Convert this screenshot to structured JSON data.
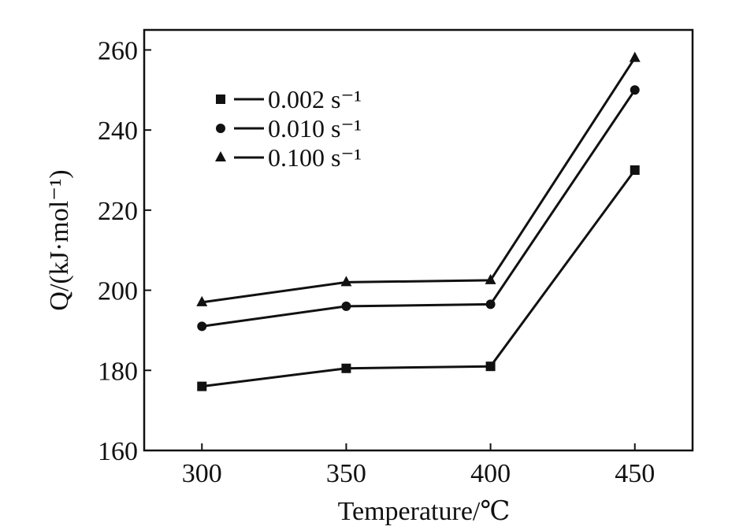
{
  "chart_data": {
    "type": "line",
    "x": [
      300,
      350,
      400,
      450
    ],
    "xlim": [
      280,
      470
    ],
    "ylim": [
      160,
      265
    ],
    "xticks": [
      300,
      350,
      400,
      450
    ],
    "yticks": [
      160,
      180,
      200,
      220,
      240,
      260
    ],
    "xlabel": "Temperature/℃",
    "ylabel": "Q/(kJ·mol⁻¹)",
    "grid": false,
    "legend_position": "top-left",
    "series": [
      {
        "name": "0.002 s⁻¹",
        "marker": "square",
        "values": [
          176,
          180.5,
          181,
          230
        ]
      },
      {
        "name": "0.010 s⁻¹",
        "marker": "circle",
        "values": [
          191,
          196,
          196.5,
          250
        ]
      },
      {
        "name": "0.100 s⁻¹",
        "marker": "triangle",
        "values": [
          197,
          202,
          202.5,
          258
        ]
      }
    ],
    "colors": {
      "ink": "#111111"
    }
  }
}
